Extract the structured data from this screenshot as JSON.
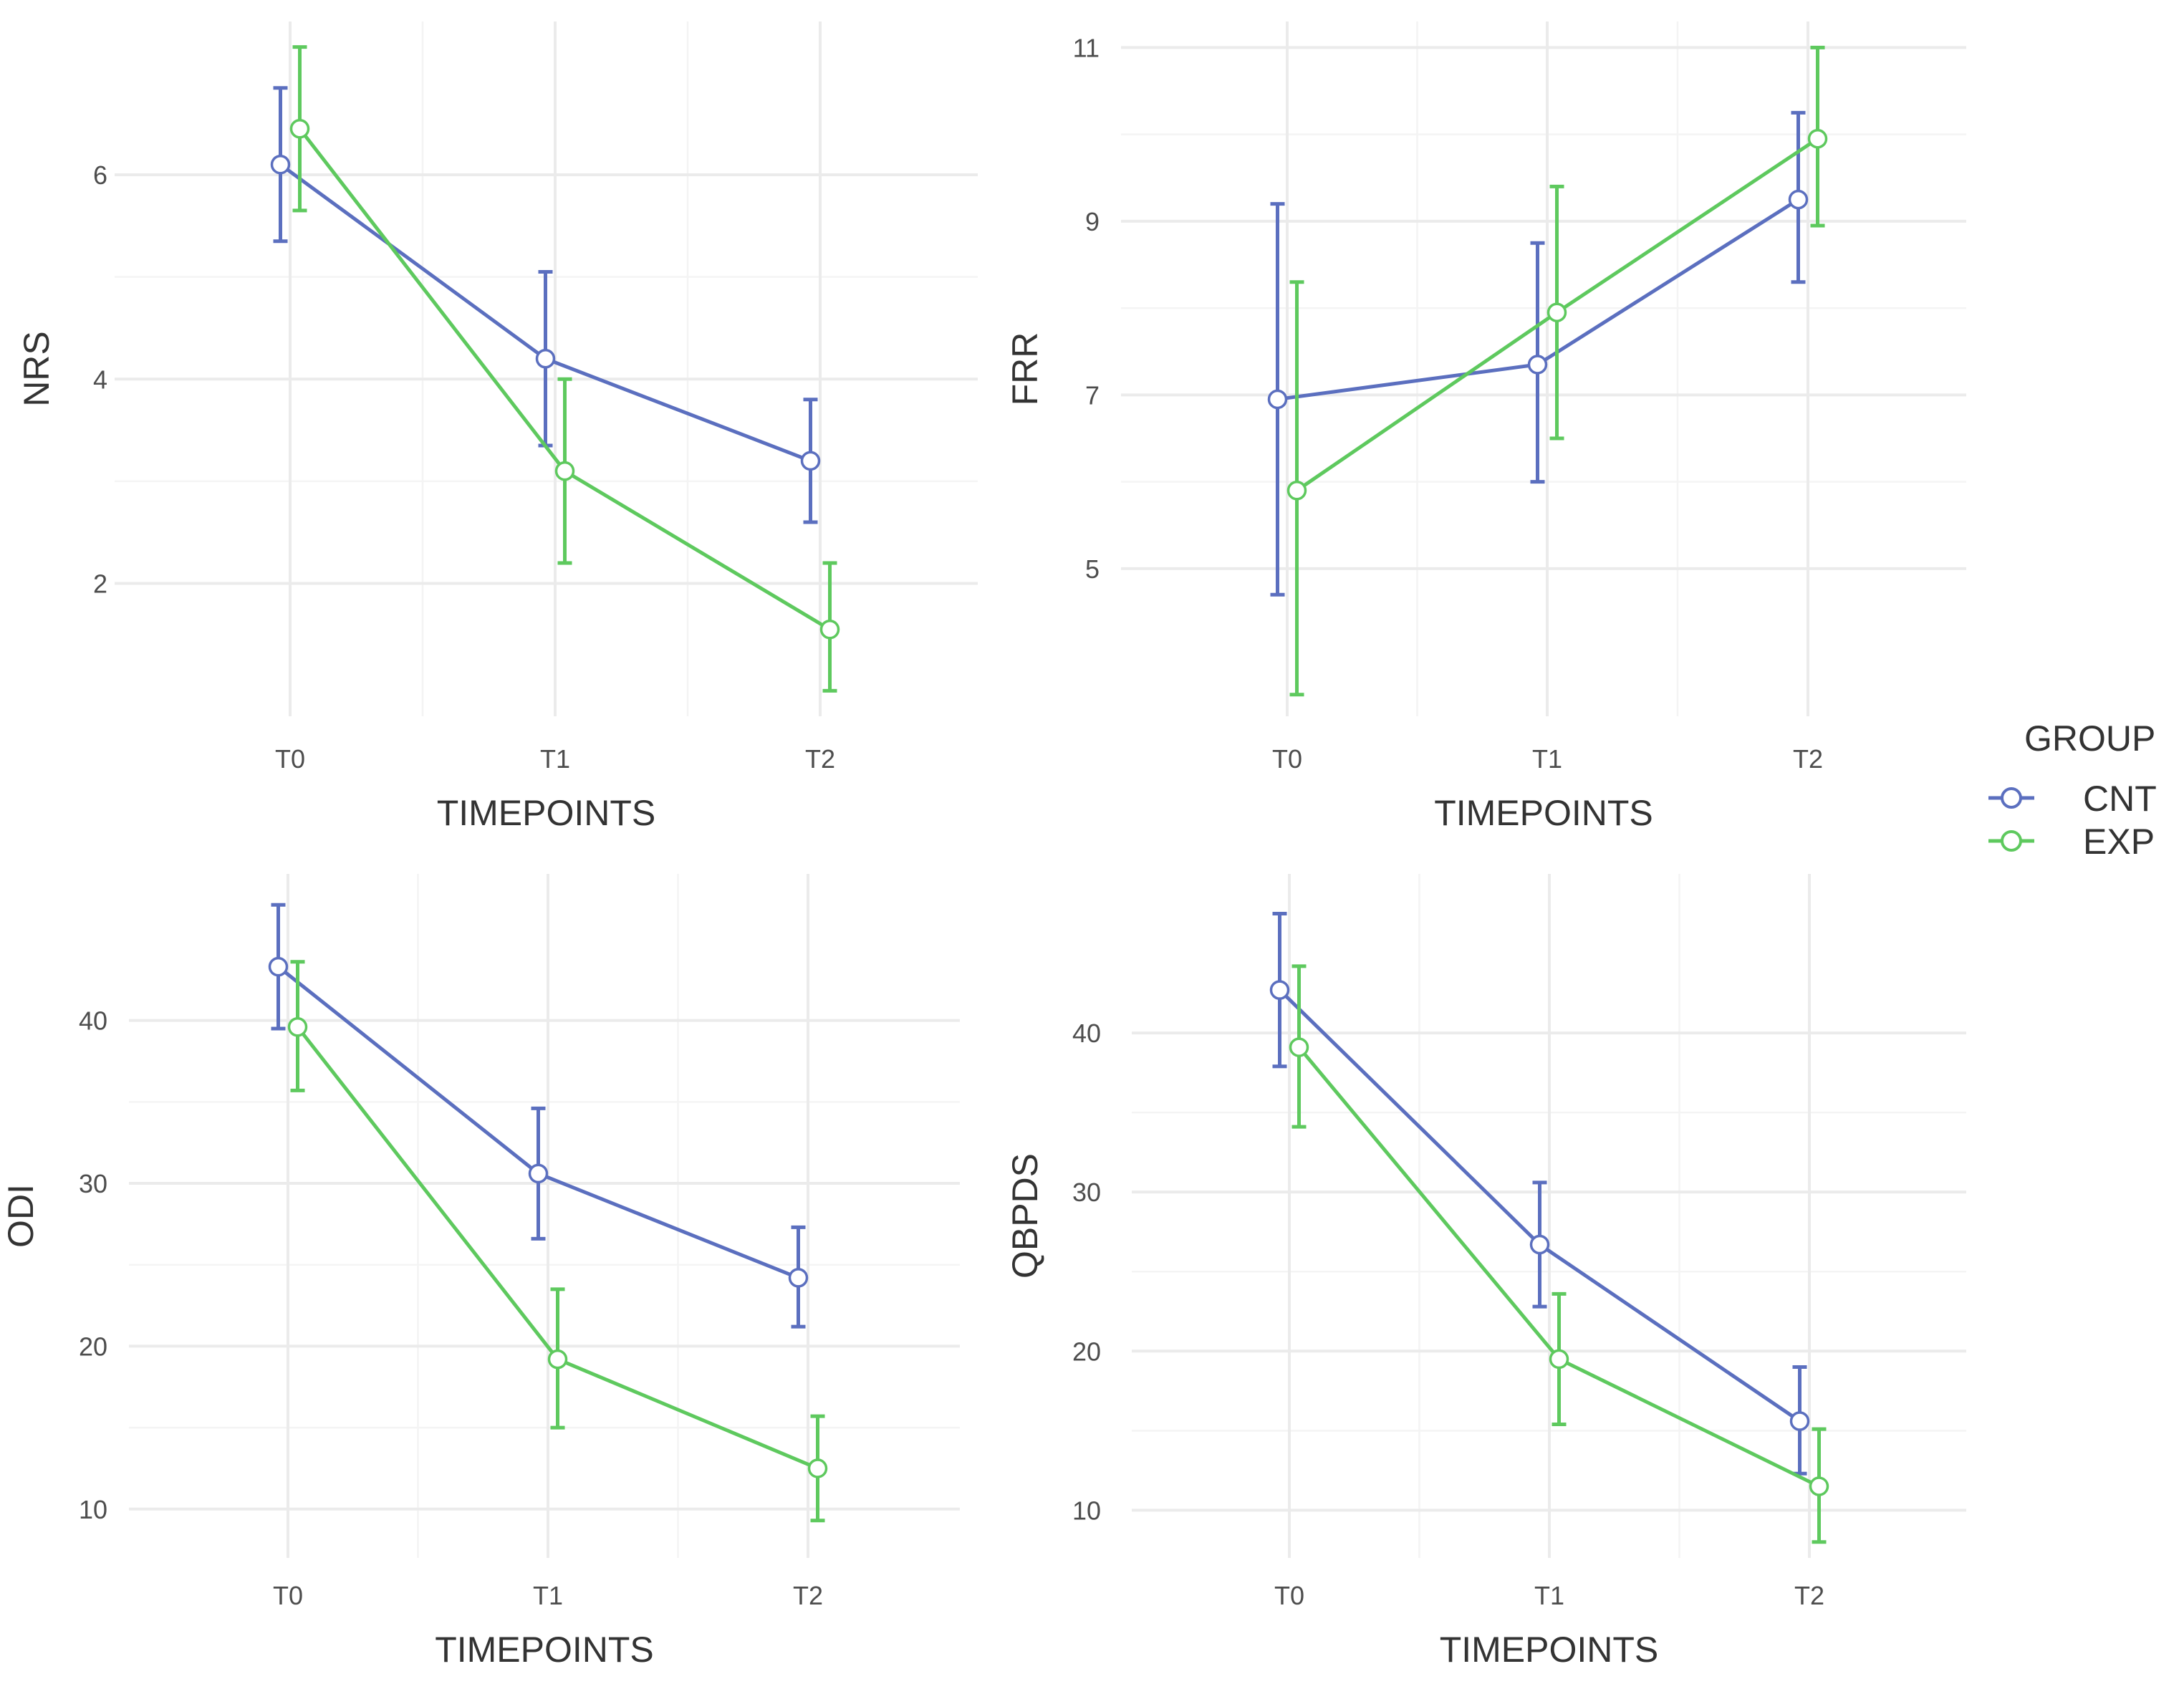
{
  "legend": {
    "title": "GROUP",
    "entries": [
      {
        "name": "CNT",
        "color": "#5b6fbf"
      },
      {
        "name": "EXP",
        "color": "#5ec95e"
      }
    ]
  },
  "chart_data": [
    {
      "type": "line",
      "panel": "top-left",
      "title": "",
      "xlabel": "TIMEPOINTS",
      "ylabel": "NRS",
      "categories": [
        "T0",
        "T1",
        "T2"
      ],
      "ylim": [
        0.7,
        7.5
      ],
      "yticks": [
        2,
        4,
        6
      ],
      "yticklabels": [
        "2",
        "4",
        "6"
      ],
      "series": [
        {
          "name": "CNT",
          "values": [
            6.1,
            4.2,
            3.2
          ],
          "lower": [
            5.35,
            3.35,
            2.6
          ],
          "upper": [
            6.85,
            5.05,
            3.8
          ]
        },
        {
          "name": "EXP",
          "values": [
            6.45,
            3.1,
            1.55
          ],
          "lower": [
            5.65,
            2.2,
            0.95
          ],
          "upper": [
            7.25,
            4.0,
            2.2
          ]
        }
      ]
    },
    {
      "type": "line",
      "panel": "top-right",
      "title": "",
      "xlabel": "TIMEPOINTS",
      "ylabel": "FRR",
      "categories": [
        "T0",
        "T1",
        "T2"
      ],
      "ylim": [
        3.3,
        11.3
      ],
      "yticks": [
        5,
        7,
        9,
        11
      ],
      "yticklabels": [
        "5",
        "7",
        "9",
        "11"
      ],
      "series": [
        {
          "name": "CNT",
          "values": [
            6.95,
            7.35,
            9.25
          ],
          "lower": [
            4.7,
            6.0,
            8.3
          ],
          "upper": [
            9.2,
            8.75,
            10.25
          ]
        },
        {
          "name": "EXP",
          "values": [
            5.9,
            7.95,
            9.95
          ],
          "lower": [
            3.55,
            6.5,
            8.95
          ],
          "upper": [
            8.3,
            9.4,
            11.0
          ]
        }
      ]
    },
    {
      "type": "line",
      "panel": "bottom-left",
      "title": "",
      "xlabel": "TIMEPOINTS",
      "ylabel": "ODI",
      "categories": [
        "T0",
        "T1",
        "T2"
      ],
      "ylim": [
        7.0,
        49.0
      ],
      "yticks": [
        10,
        20,
        30,
        40
      ],
      "yticklabels": [
        "10",
        "20",
        "30",
        "40"
      ],
      "series": [
        {
          "name": "CNT",
          "values": [
            43.3,
            30.6,
            24.2
          ],
          "lower": [
            39.5,
            26.6,
            21.2
          ],
          "upper": [
            47.1,
            34.6,
            27.3
          ]
        },
        {
          "name": "EXP",
          "values": [
            39.6,
            19.2,
            12.5
          ],
          "lower": [
            35.7,
            15.0,
            9.3
          ],
          "upper": [
            43.6,
            23.5,
            15.7
          ]
        }
      ]
    },
    {
      "type": "line",
      "panel": "bottom-right",
      "title": "",
      "xlabel": "TIMEPOINTS",
      "ylabel": "QBPDS",
      "categories": [
        "T0",
        "T1",
        "T2"
      ],
      "ylim": [
        7.0,
        50.0
      ],
      "yticks": [
        10,
        20,
        30,
        40
      ],
      "yticklabels": [
        "10",
        "20",
        "30",
        "40"
      ],
      "series": [
        {
          "name": "CNT",
          "values": [
            42.7,
            26.7,
            15.6
          ],
          "lower": [
            37.9,
            22.8,
            12.3
          ],
          "upper": [
            47.5,
            30.6,
            19.0
          ]
        },
        {
          "name": "EXP",
          "values": [
            39.1,
            19.5,
            11.5
          ],
          "lower": [
            34.1,
            15.4,
            8.0
          ],
          "upper": [
            44.2,
            23.6,
            15.1
          ]
        }
      ]
    }
  ]
}
